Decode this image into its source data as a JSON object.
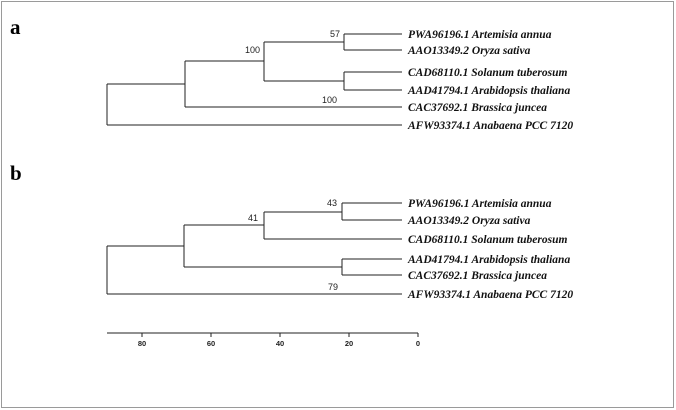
{
  "panel_a": {
    "label": "a",
    "leaves": [
      "PWA96196.1 Artemisia annua",
      "AAO13349.2 Oryza sativa",
      "CAD68110.1 Solanum tuberosum",
      "AAD41794.1 Arabidopsis thaliana",
      "CAC37692.1 Brassica juncea",
      "AFW93374.1 Anabaena PCC 7120"
    ],
    "bootstrap": [
      "57",
      "100",
      "100"
    ]
  },
  "panel_b": {
    "label": "b",
    "leaves": [
      "PWA96196.1 Artemisia annua",
      "AAO13349.2 Oryza sativa",
      "CAD68110.1 Solanum tuberosum",
      "AAD41794.1 Arabidopsis thaliana",
      "CAC37692.1 Brassica juncea",
      "AFW93374.1 Anabaena PCC 7120"
    ],
    "bootstrap": [
      "43",
      "41",
      "79"
    ]
  },
  "scale": {
    "ticks": [
      "80",
      "60",
      "40",
      "20",
      "0"
    ]
  }
}
